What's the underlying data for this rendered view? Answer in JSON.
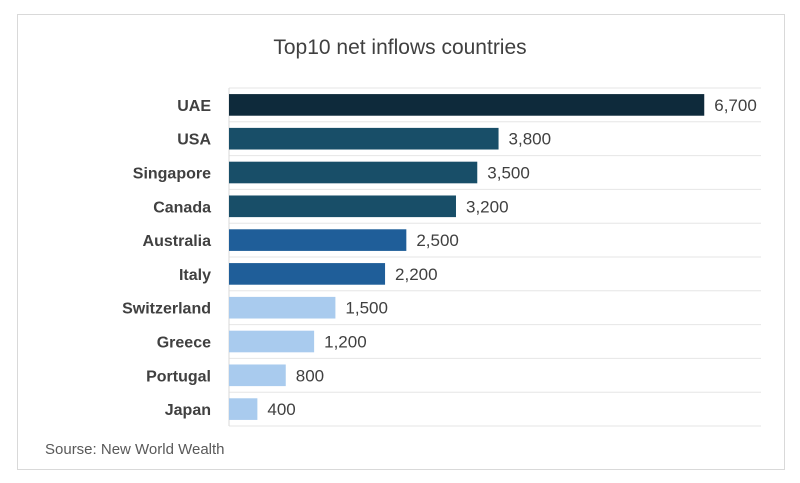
{
  "chart_data": {
    "type": "bar",
    "orientation": "horizontal",
    "title": "Top10 net inflows countries",
    "categories": [
      "UAE",
      "USA",
      "Singapore",
      "Canada",
      "Australia",
      "Italy",
      "Switzerland",
      "Greece",
      "Portugal",
      "Japan"
    ],
    "values": [
      6700,
      3800,
      3500,
      3200,
      2500,
      2200,
      1500,
      1200,
      800,
      400
    ],
    "data_labels": [
      "6,700",
      "3,800",
      "3,500",
      "3,200",
      "2,500",
      "2,200",
      "1,500",
      "1,200",
      "800",
      "400"
    ],
    "colors": [
      "#0e2a3b",
      "#184e68",
      "#184e68",
      "#184e68",
      "#1f5e99",
      "#1f5e99",
      "#a9cbee",
      "#a9cbee",
      "#a9cbee",
      "#a9cbee"
    ],
    "xlim": [
      0,
      7500
    ],
    "gridlines": "horizontal",
    "legend": "none",
    "source": "Sourse: New World Wealth"
  }
}
